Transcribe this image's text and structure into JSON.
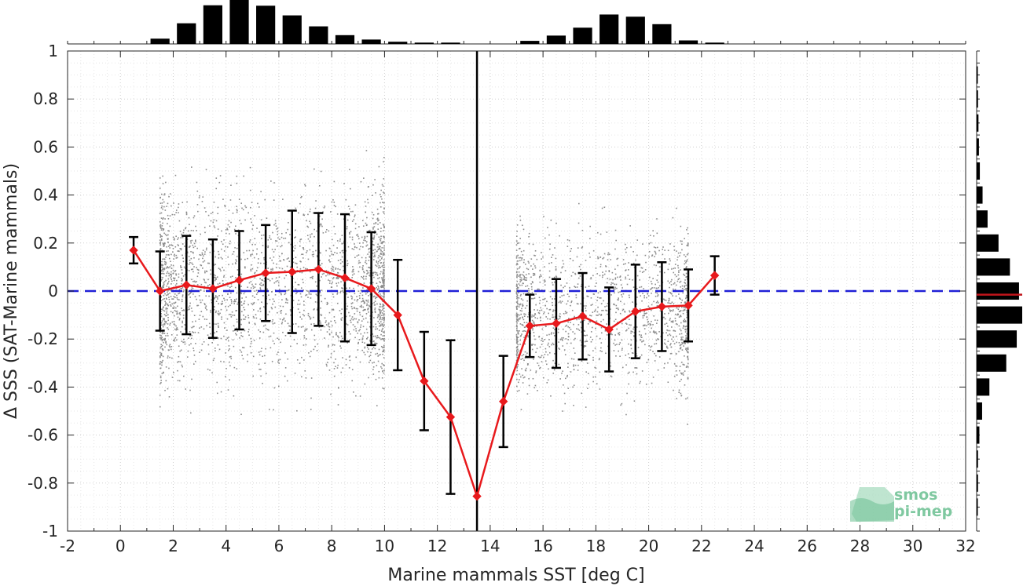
{
  "chart_data": {
    "type": "scatter",
    "xlabel": "Marine mammals SST [deg C]",
    "ylabel": "Δ SSS (SAT-Marine mammals)",
    "xlim": [
      -2,
      32
    ],
    "ylim": [
      -1,
      1
    ],
    "xticks": [
      "-2",
      "0",
      "2",
      "4",
      "6",
      "8",
      "10",
      "12",
      "14",
      "16",
      "18",
      "20",
      "22",
      "24",
      "26",
      "28",
      "30",
      "32"
    ],
    "yticks": [
      "-1",
      "-0.8",
      "-0.6",
      "-0.4",
      "-0.2",
      "0",
      "0.2",
      "0.4",
      "0.6",
      "0.8",
      "1"
    ],
    "grid": true,
    "reference_line_y": 0,
    "vertical_line_x": 13.5,
    "binned_mean": {
      "x": [
        0.5,
        1.5,
        2.5,
        3.5,
        4.5,
        5.5,
        6.5,
        7.5,
        8.5,
        9.5,
        10.5,
        11.5,
        12.5,
        13.5,
        14.5,
        15.5,
        16.5,
        17.5,
        18.5,
        19.5,
        20.5,
        21.5,
        22.5
      ],
      "mean": [
        0.17,
        0.0,
        0.025,
        0.01,
        0.045,
        0.075,
        0.08,
        0.09,
        0.055,
        0.01,
        -0.1,
        -0.375,
        -0.525,
        -0.855,
        -0.46,
        -0.145,
        -0.135,
        -0.105,
        -0.16,
        -0.085,
        -0.065,
        -0.06,
        0.065
      ],
      "std": [
        0.055,
        0.165,
        0.205,
        0.205,
        0.205,
        0.2,
        0.255,
        0.235,
        0.265,
        0.235,
        0.23,
        0.205,
        0.32,
        0.0,
        0.19,
        0.13,
        0.185,
        0.18,
        0.175,
        0.195,
        0.185,
        0.15,
        0.08
      ]
    },
    "scatter_clusters": [
      {
        "x_range": [
          1.5,
          10
        ],
        "y_center": 0.02,
        "y_spread": 0.2,
        "count": 2600
      },
      {
        "x_range": [
          15,
          21.5
        ],
        "y_center": -0.08,
        "y_spread": 0.16,
        "count": 1600
      }
    ],
    "top_histogram": {
      "bin_centers": [
        1.5,
        2.5,
        3.5,
        4.5,
        5.5,
        6.5,
        7.5,
        8.5,
        9.5,
        10.5,
        11.5,
        12.5,
        15.5,
        16.5,
        17.5,
        18.5,
        19.5,
        20.5,
        21.5,
        22.5
      ],
      "relative_counts": [
        0.12,
        0.47,
        0.88,
        1.0,
        0.87,
        0.65,
        0.4,
        0.2,
        0.1,
        0.05,
        0.03,
        0.03,
        0.07,
        0.19,
        0.37,
        0.67,
        0.62,
        0.45,
        0.08,
        0.03
      ]
    },
    "side_histogram": {
      "bin_centers": [
        -0.9,
        -0.8,
        -0.7,
        -0.6,
        -0.5,
        -0.4,
        -0.3,
        -0.2,
        -0.1,
        0.0,
        0.1,
        0.2,
        0.3,
        0.4,
        0.5,
        0.6,
        0.7,
        0.8,
        0.9
      ],
      "relative_counts": [
        0.02,
        0.03,
        0.03,
        0.06,
        0.12,
        0.28,
        0.65,
        0.88,
        1.0,
        0.93,
        0.73,
        0.48,
        0.24,
        0.13,
        0.07,
        0.05,
        0.04,
        0.03,
        0.02
      ],
      "median": -0.015
    },
    "colors": {
      "scatter": "#8c8c8c",
      "mean_line": "#e8191c",
      "errorbar": "#000000",
      "reference": "#1f1fd6",
      "vertical_line": "#000000",
      "histogram": "#000000",
      "median_marker": "#c0151b"
    }
  },
  "logo": {
    "line1": "smos",
    "line2": "pi-mep",
    "color": "#7fc8a0"
  }
}
